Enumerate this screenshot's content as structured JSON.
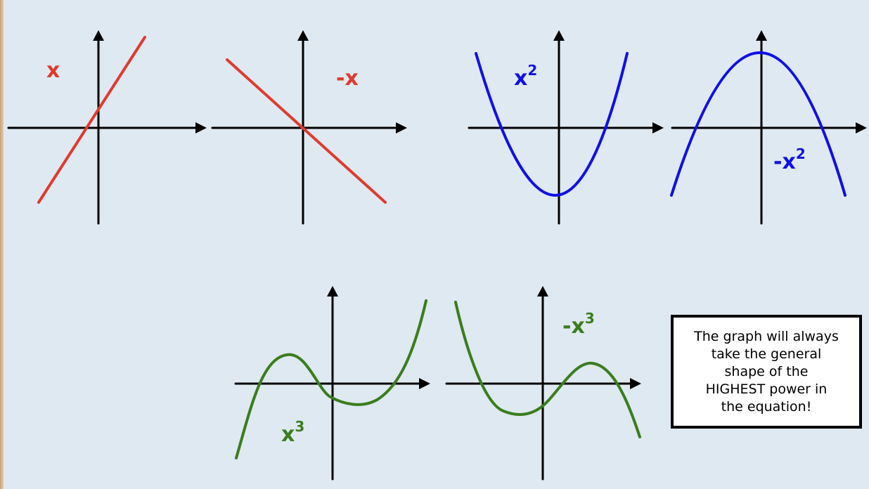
{
  "graphs": [
    {
      "label": "x",
      "power": null,
      "color": "#e03a2e",
      "shape": "linear-increasing"
    },
    {
      "label": "-x",
      "power": null,
      "color": "#e03a2e",
      "shape": "linear-decreasing"
    },
    {
      "label": "x",
      "power": "2",
      "color": "#1010e6",
      "shape": "parabola-up"
    },
    {
      "label": "-x",
      "power": "2",
      "color": "#1010e6",
      "shape": "parabola-down"
    },
    {
      "label": "x",
      "power": "3",
      "color": "#3a7d1e",
      "shape": "cubic-positive"
    },
    {
      "label": "-x",
      "power": "3",
      "color": "#3a7d1e",
      "shape": "cubic-negative"
    }
  ],
  "note": {
    "text": "The graph will always\ntake the general\nshape of the\nHIGHEST power in\nthe equation!"
  },
  "colors": {
    "background": "#dfe9f1",
    "linear": "#e03a2e",
    "quadratic": "#1010e6",
    "cubic": "#3a7d1e",
    "axis": "#000000"
  }
}
